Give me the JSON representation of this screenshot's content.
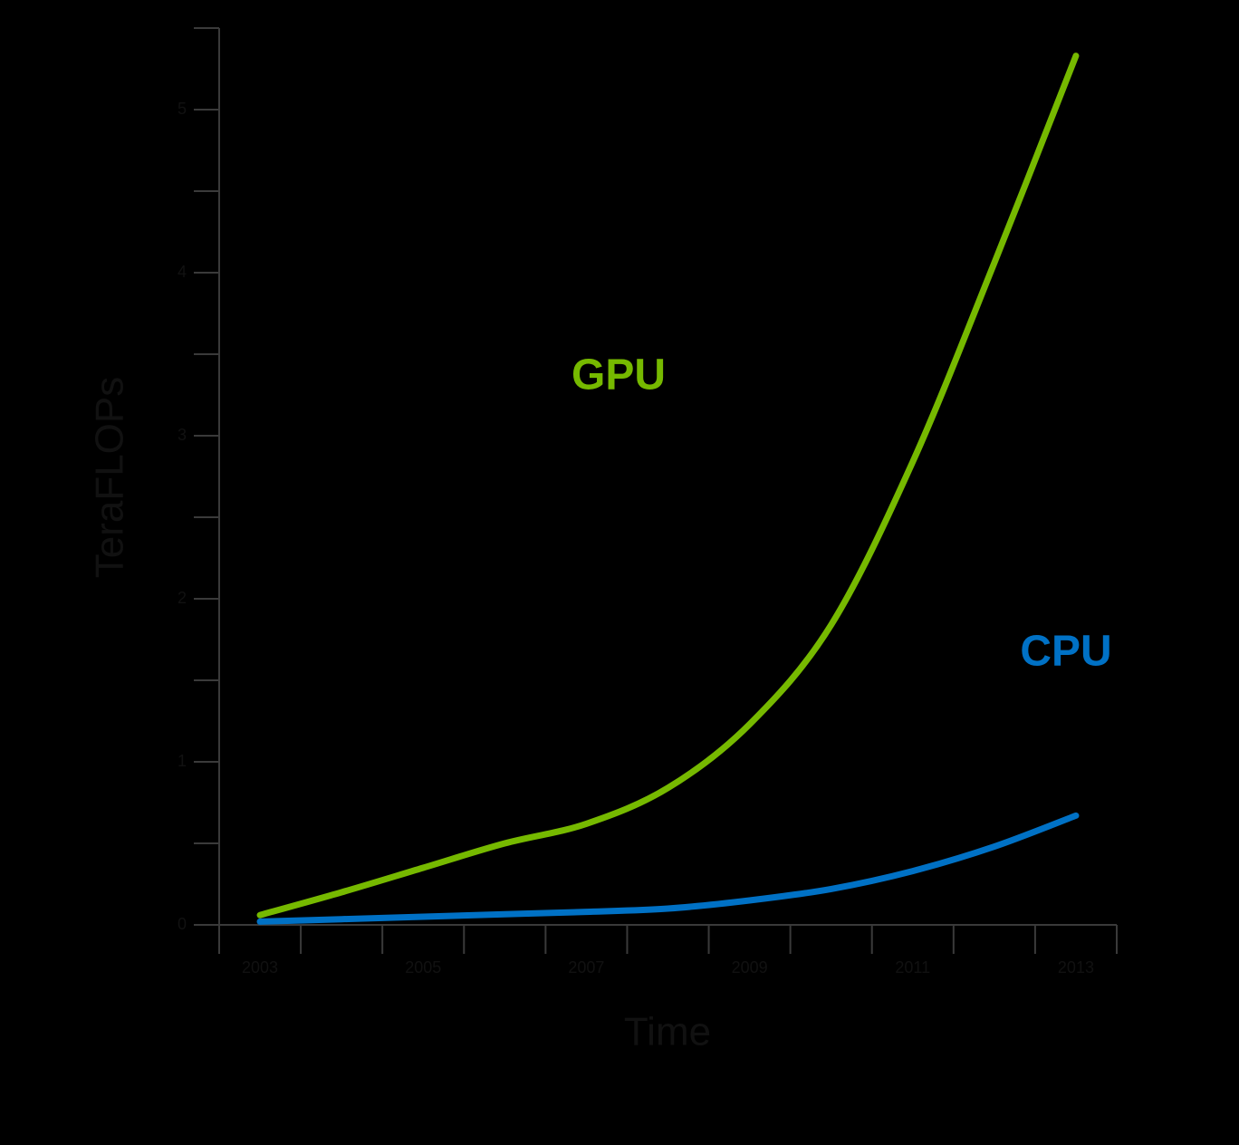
{
  "chart_data": {
    "type": "line",
    "x_label": "Time",
    "y_label": "TeraFLOPs",
    "x": [
      2003,
      2004,
      2005,
      2006,
      2007,
      2008,
      2009,
      2010,
      2011,
      2012,
      2013
    ],
    "series": [
      {
        "name": "GPU",
        "color": "#76b900",
        "values": [
          0.06,
          0.2,
          0.35,
          0.5,
          0.62,
          0.84,
          1.23,
          1.84,
          2.84,
          4.06,
          5.33
        ]
      },
      {
        "name": "CPU",
        "color": "#0071c5",
        "values": [
          0.02,
          0.035,
          0.05,
          0.065,
          0.08,
          0.1,
          0.15,
          0.22,
          0.33,
          0.48,
          0.67
        ]
      }
    ],
    "xlim": [
      2002.5,
      2013.5
    ],
    "xticks": [
      2003,
      2005,
      2007,
      2009,
      2011,
      2013
    ],
    "xminor": [
      2002.5,
      2003.5,
      2004.5,
      2005.5,
      2006.5,
      2007.5,
      2008.5,
      2009.5,
      2010.5,
      2011.5,
      2012.5,
      2013.5
    ],
    "ylim": [
      0,
      5.5
    ],
    "yticks": [
      0,
      1,
      2,
      3,
      4,
      5
    ],
    "yminor": [
      0.5,
      1.5,
      2.5,
      3.5,
      4.5,
      5.5
    ]
  }
}
